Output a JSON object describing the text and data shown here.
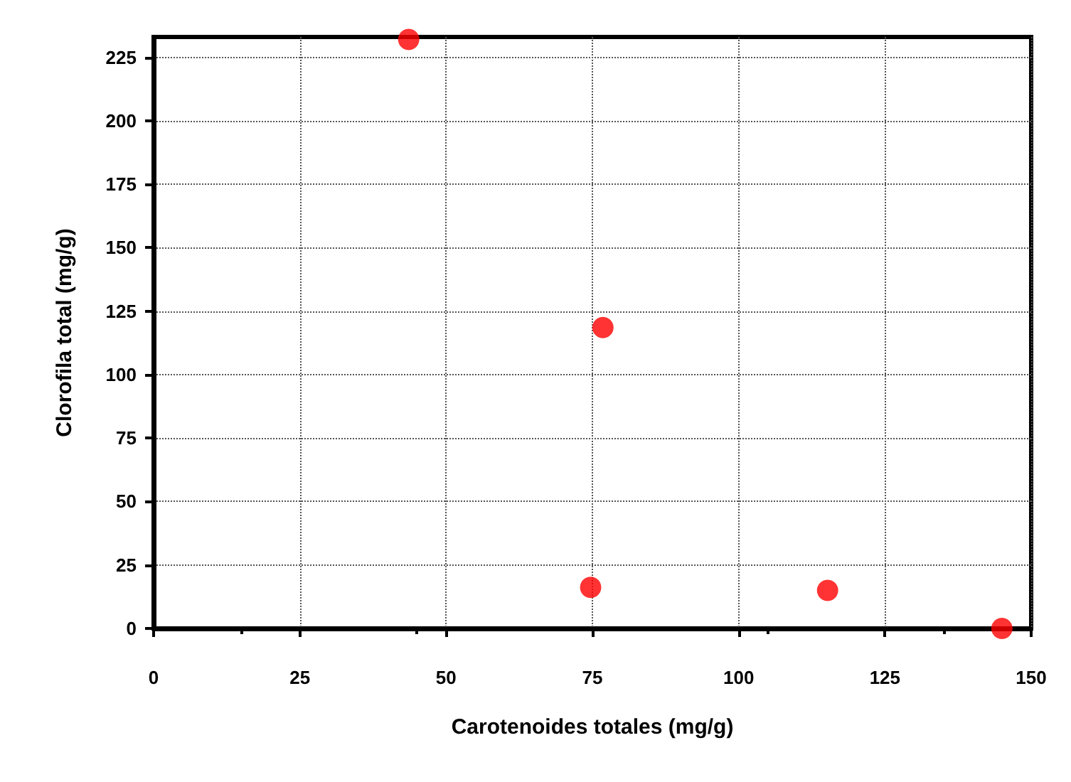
{
  "chart_data": {
    "type": "scatter",
    "xlabel": "Carotenoides totales (mg/g)",
    "ylabel": "Clorofila total (mg/g)",
    "x": [
      43.6,
      76.8,
      74.7,
      115.2,
      145
    ],
    "series": [
      {
        "color": "#ff0000",
        "values": [
          232,
          118.5,
          16.2,
          15,
          0
        ]
      }
    ],
    "xlim": [
      0,
      150
    ],
    "xticks": [
      0,
      25,
      50,
      75,
      100,
      125,
      150
    ],
    "ylim": [
      0,
      233
    ],
    "yticks": [
      0,
      25,
      50,
      75,
      100,
      125,
      150,
      175,
      200,
      225
    ],
    "grid": true,
    "marker": "circle"
  }
}
